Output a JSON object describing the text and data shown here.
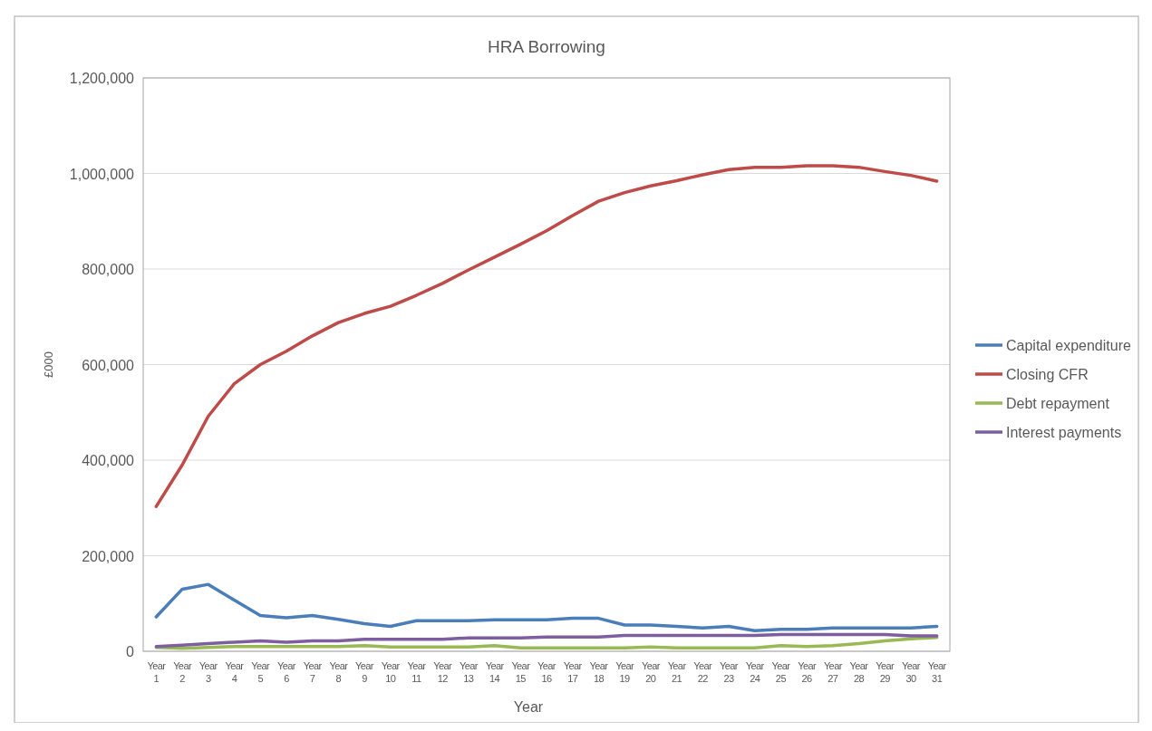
{
  "chart_data": {
    "type": "line",
    "title": "HRA Borrowing",
    "xlabel": "Year",
    "ylabel": "£000",
    "categories": [
      "Year 1",
      "Year 2",
      "Year 3",
      "Year 4",
      "Year 5",
      "Year 6",
      "Year 7",
      "Year 8",
      "Year 9",
      "Year 10",
      "Year 11",
      "Year 12",
      "Year 13",
      "Year 14",
      "Year 15",
      "Year 16",
      "Year 17",
      "Year 18",
      "Year 19",
      "Year 20",
      "Year 21",
      "Year 22",
      "Year 23",
      "Year 24",
      "Year 25",
      "Year 26",
      "Year 27",
      "Year 28",
      "Year 29",
      "Year 30",
      "Year 31"
    ],
    "series": [
      {
        "name": "Capital expenditure",
        "color": "#4a7ebb",
        "values": [
          72000,
          130000,
          140000,
          107000,
          75000,
          70000,
          75000,
          67000,
          58000,
          52000,
          64000,
          64000,
          64000,
          66000,
          66000,
          66000,
          69000,
          69000,
          55000,
          55000,
          52000,
          49000,
          52000,
          43000,
          46000,
          46000,
          49000,
          49000,
          49000,
          49000,
          52000
        ]
      },
      {
        "name": "Closing CFR",
        "color": "#be4b48",
        "values": [
          303000,
          390000,
          492000,
          560000,
          600000,
          628000,
          660000,
          688000,
          707000,
          722000,
          745000,
          770000,
          798000,
          825000,
          852000,
          880000,
          912000,
          942000,
          960000,
          974000,
          985000,
          997000,
          1008000,
          1013000,
          1013000,
          1016000,
          1016000,
          1013000,
          1004000,
          996000,
          984000
        ]
      },
      {
        "name": "Debt repayment",
        "color": "#98b954",
        "values": [
          8000,
          6000,
          8000,
          10000,
          10000,
          10000,
          10000,
          10000,
          12000,
          9000,
          9000,
          9000,
          9000,
          12000,
          7000,
          7000,
          7000,
          7000,
          7000,
          9000,
          7000,
          7000,
          7000,
          7000,
          12000,
          10000,
          12000,
          16000,
          22000,
          26000,
          29000
        ]
      },
      {
        "name": "Interest payments",
        "color": "#7d5fa0",
        "values": [
          10000,
          13000,
          16000,
          19000,
          22000,
          19000,
          22000,
          22000,
          25000,
          25000,
          25000,
          25000,
          28000,
          28000,
          28000,
          30000,
          30000,
          30000,
          33000,
          33000,
          33000,
          33000,
          33000,
          33000,
          35000,
          35000,
          35000,
          35000,
          35000,
          32000,
          32000
        ]
      }
    ],
    "ylim": [
      0,
      1200000
    ],
    "yticks": [
      {
        "value": 0,
        "label": "0"
      },
      {
        "value": 200000,
        "label": "200,000"
      },
      {
        "value": 400000,
        "label": "400,000"
      },
      {
        "value": 600000,
        "label": "600,000"
      },
      {
        "value": 800000,
        "label": "800,000"
      },
      {
        "value": 1000000,
        "label": "1,000,000"
      },
      {
        "value": 1200000,
        "label": "1,200,000"
      }
    ],
    "grid": "y",
    "legend": "right",
    "marker": "none",
    "line_style": "solid"
  }
}
